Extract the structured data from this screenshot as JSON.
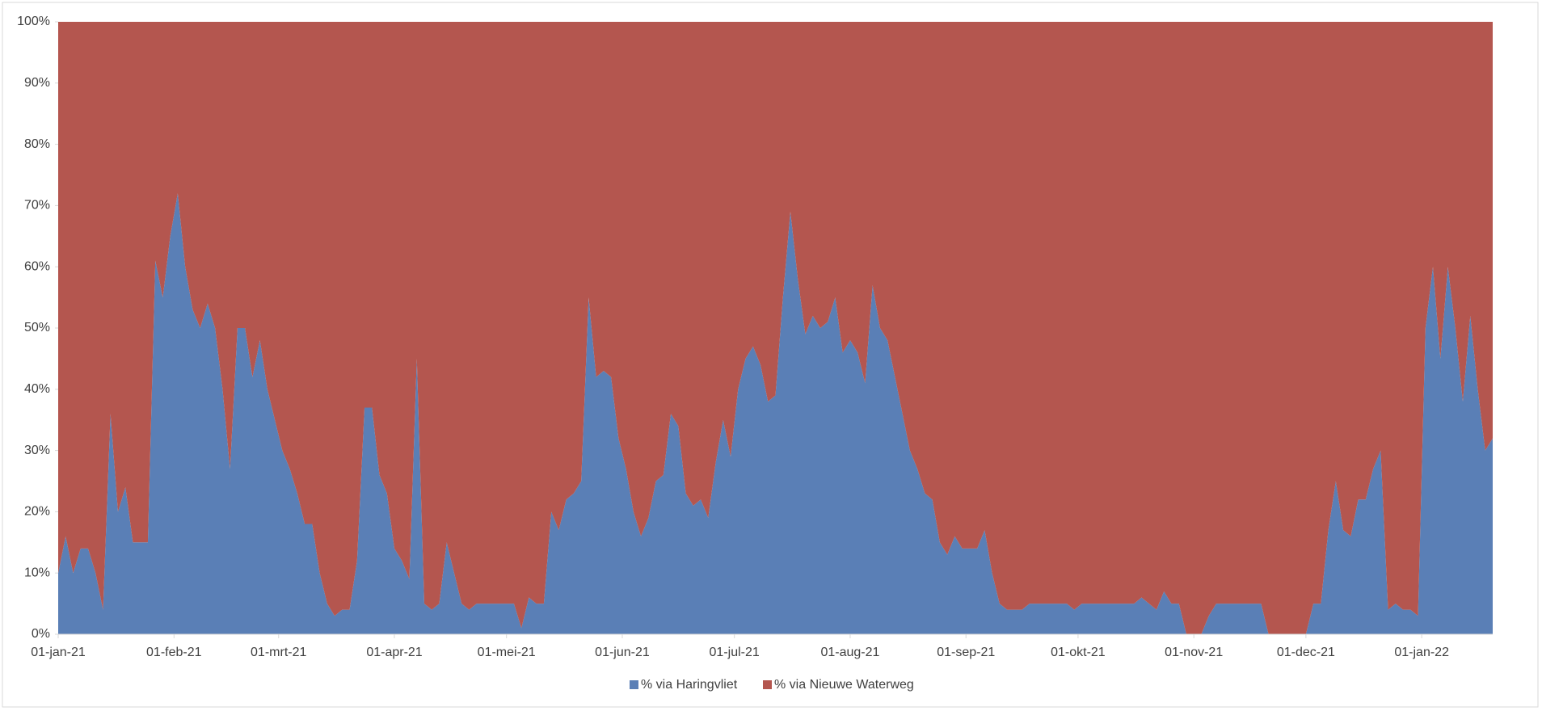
{
  "chart_data": {
    "type": "stacked-area-percent",
    "x": [
      "2021-01-01",
      "2021-01-03",
      "2021-01-05",
      "2021-01-07",
      "2021-01-09",
      "2021-01-11",
      "2021-01-13",
      "2021-01-15",
      "2021-01-17",
      "2021-01-19",
      "2021-01-21",
      "2021-01-23",
      "2021-01-25",
      "2021-01-27",
      "2021-01-29",
      "2021-01-31",
      "2021-02-02",
      "2021-02-04",
      "2021-02-06",
      "2021-02-08",
      "2021-02-10",
      "2021-02-12",
      "2021-02-14",
      "2021-02-16",
      "2021-02-18",
      "2021-02-20",
      "2021-02-22",
      "2021-02-24",
      "2021-02-26",
      "2021-02-28",
      "2021-03-02",
      "2021-03-04",
      "2021-03-06",
      "2021-03-08",
      "2021-03-10",
      "2021-03-12",
      "2021-03-14",
      "2021-03-16",
      "2021-03-18",
      "2021-03-20",
      "2021-03-22",
      "2021-03-24",
      "2021-03-26",
      "2021-03-28",
      "2021-03-30",
      "2021-04-01",
      "2021-04-03",
      "2021-04-05",
      "2021-04-07",
      "2021-04-09",
      "2021-04-11",
      "2021-04-13",
      "2021-04-15",
      "2021-04-17",
      "2021-04-19",
      "2021-04-21",
      "2021-04-23",
      "2021-04-25",
      "2021-04-27",
      "2021-04-29",
      "2021-05-01",
      "2021-05-03",
      "2021-05-05",
      "2021-05-07",
      "2021-05-09",
      "2021-05-11",
      "2021-05-13",
      "2021-05-15",
      "2021-05-17",
      "2021-05-19",
      "2021-05-21",
      "2021-05-23",
      "2021-05-25",
      "2021-05-27",
      "2021-05-29",
      "2021-05-31",
      "2021-06-02",
      "2021-06-04",
      "2021-06-06",
      "2021-06-08",
      "2021-06-10",
      "2021-06-12",
      "2021-06-14",
      "2021-06-16",
      "2021-06-18",
      "2021-06-20",
      "2021-06-22",
      "2021-06-24",
      "2021-06-26",
      "2021-06-28",
      "2021-06-30",
      "2021-07-02",
      "2021-07-04",
      "2021-07-06",
      "2021-07-08",
      "2021-07-10",
      "2021-07-12",
      "2021-07-14",
      "2021-07-16",
      "2021-07-18",
      "2021-07-20",
      "2021-07-22",
      "2021-07-24",
      "2021-07-26",
      "2021-07-28",
      "2021-07-30",
      "2021-08-01",
      "2021-08-03",
      "2021-08-05",
      "2021-08-07",
      "2021-08-09",
      "2021-08-11",
      "2021-08-13",
      "2021-08-15",
      "2021-08-17",
      "2021-08-19",
      "2021-08-21",
      "2021-08-23",
      "2021-08-25",
      "2021-08-27",
      "2021-08-29",
      "2021-08-31",
      "2021-09-02",
      "2021-09-04",
      "2021-09-06",
      "2021-09-08",
      "2021-09-10",
      "2021-09-12",
      "2021-09-14",
      "2021-09-16",
      "2021-09-18",
      "2021-09-20",
      "2021-09-22",
      "2021-09-24",
      "2021-09-26",
      "2021-09-28",
      "2021-09-30",
      "2021-10-02",
      "2021-10-04",
      "2021-10-06",
      "2021-10-08",
      "2021-10-10",
      "2021-10-12",
      "2021-10-14",
      "2021-10-16",
      "2021-10-18",
      "2021-10-20",
      "2021-10-22",
      "2021-10-24",
      "2021-10-26",
      "2021-10-28",
      "2021-10-30",
      "2021-11-01",
      "2021-11-03",
      "2021-11-05",
      "2021-11-07",
      "2021-11-09",
      "2021-11-11",
      "2021-11-13",
      "2021-11-15",
      "2021-11-17",
      "2021-11-19",
      "2021-11-21",
      "2021-11-23",
      "2021-11-25",
      "2021-11-27",
      "2021-11-29",
      "2021-12-01",
      "2021-12-03",
      "2021-12-05",
      "2021-12-07",
      "2021-12-09",
      "2021-12-11",
      "2021-12-13",
      "2021-12-15",
      "2021-12-17",
      "2021-12-19",
      "2021-12-21",
      "2021-12-23",
      "2021-12-25",
      "2021-12-27",
      "2021-12-29",
      "2021-12-31",
      "2022-01-02",
      "2022-01-04",
      "2022-01-06",
      "2022-01-08",
      "2022-01-10",
      "2022-01-12",
      "2022-01-14",
      "2022-01-16",
      "2022-01-18",
      "2022-01-20"
    ],
    "series": [
      {
        "name": "% via Haringvliet",
        "color": "#5a7fb6",
        "values": [
          10,
          16,
          10,
          14,
          14,
          10,
          4,
          36,
          20,
          24,
          15,
          15,
          15,
          61,
          55,
          65,
          72,
          60,
          53,
          50,
          54,
          50,
          40,
          27,
          50,
          50,
          42,
          48,
          40,
          35,
          30,
          27,
          23,
          18,
          18,
          10,
          5,
          3,
          4,
          4,
          12,
          37,
          37,
          26,
          23,
          14,
          12,
          9,
          45,
          5,
          4,
          5,
          15,
          10,
          5,
          4,
          5,
          5,
          5,
          5,
          5,
          5,
          1,
          6,
          5,
          5,
          20,
          17,
          22,
          23,
          25,
          55,
          42,
          43,
          42,
          32,
          27,
          20,
          16,
          19,
          25,
          26,
          36,
          34,
          23,
          21,
          22,
          19,
          28,
          35,
          29,
          40,
          45,
          47,
          44,
          38,
          39,
          55,
          69,
          58,
          49,
          52,
          50,
          51,
          55,
          46,
          48,
          46,
          41,
          57,
          50,
          48,
          42,
          36,
          30,
          27,
          23,
          22,
          15,
          13,
          16,
          14,
          14,
          14,
          17,
          10,
          5,
          4,
          4,
          4,
          5,
          5,
          5,
          5,
          5,
          5,
          4,
          5,
          5,
          5,
          5,
          5,
          5,
          5,
          5,
          6,
          5,
          4,
          7,
          5,
          5,
          0,
          0,
          0,
          3,
          5,
          5,
          5,
          5,
          5,
          5,
          5,
          0,
          0,
          0,
          0,
          0,
          0,
          5,
          5,
          17,
          25,
          17,
          16,
          22,
          22,
          27,
          30,
          4,
          5,
          4,
          4,
          3,
          50,
          60,
          45,
          60,
          50,
          38,
          52,
          40,
          30,
          32
        ]
      },
      {
        "name": "% via Nieuwe Waterweg",
        "color": "#b4564f",
        "values": [
          90,
          84,
          90,
          86,
          86,
          90,
          96,
          64,
          80,
          76,
          85,
          85,
          85,
          39,
          45,
          35,
          28,
          40,
          47,
          50,
          46,
          50,
          60,
          73,
          50,
          50,
          58,
          52,
          60,
          65,
          70,
          73,
          77,
          82,
          82,
          90,
          95,
          97,
          96,
          96,
          88,
          63,
          63,
          74,
          77,
          86,
          88,
          91,
          55,
          95,
          96,
          95,
          85,
          90,
          95,
          96,
          95,
          95,
          95,
          95,
          95,
          95,
          99,
          94,
          95,
          95,
          80,
          83,
          78,
          77,
          75,
          45,
          58,
          57,
          58,
          68,
          73,
          80,
          84,
          81,
          75,
          74,
          64,
          66,
          77,
          79,
          78,
          81,
          72,
          65,
          71,
          60,
          55,
          53,
          56,
          62,
          61,
          45,
          31,
          42,
          51,
          48,
          50,
          49,
          45,
          54,
          52,
          54,
          59,
          43,
          50,
          52,
          58,
          64,
          70,
          73,
          77,
          78,
          85,
          87,
          84,
          86,
          86,
          86,
          83,
          90,
          95,
          96,
          96,
          96,
          95,
          95,
          95,
          95,
          95,
          95,
          96,
          95,
          95,
          95,
          95,
          95,
          95,
          95,
          95,
          94,
          95,
          96,
          93,
          95,
          95,
          100,
          100,
          100,
          97,
          95,
          95,
          95,
          95,
          95,
          95,
          95,
          100,
          100,
          100,
          100,
          100,
          100,
          95,
          95,
          83,
          75,
          83,
          84,
          78,
          78,
          73,
          70,
          96,
          95,
          96,
          96,
          97,
          50,
          40,
          55,
          40,
          50,
          62,
          48,
          60,
          70,
          68
        ]
      }
    ],
    "xlim": [
      "2021-01-01",
      "2022-01-20"
    ],
    "xticks": [
      {
        "value": "2021-01-01",
        "label": "01-jan-21"
      },
      {
        "value": "2021-02-01",
        "label": "01-feb-21"
      },
      {
        "value": "2021-03-01",
        "label": "01-mrt-21"
      },
      {
        "value": "2021-04-01",
        "label": "01-apr-21"
      },
      {
        "value": "2021-05-01",
        "label": "01-mei-21"
      },
      {
        "value": "2021-06-01",
        "label": "01-jun-21"
      },
      {
        "value": "2021-07-01",
        "label": "01-jul-21"
      },
      {
        "value": "2021-08-01",
        "label": "01-aug-21"
      },
      {
        "value": "2021-09-01",
        "label": "01-sep-21"
      },
      {
        "value": "2021-10-01",
        "label": "01-okt-21"
      },
      {
        "value": "2021-11-01",
        "label": "01-nov-21"
      },
      {
        "value": "2021-12-01",
        "label": "01-dec-21"
      },
      {
        "value": "2022-01-01",
        "label": "01-jan-22"
      }
    ],
    "ylim": [
      0,
      100
    ],
    "yticks": [
      {
        "value": 0,
        "label": "0%"
      },
      {
        "value": 10,
        "label": "10%"
      },
      {
        "value": 20,
        "label": "20%"
      },
      {
        "value": 30,
        "label": "30%"
      },
      {
        "value": 40,
        "label": "40%"
      },
      {
        "value": 50,
        "label": "50%"
      },
      {
        "value": 60,
        "label": "60%"
      },
      {
        "value": 70,
        "label": "70%"
      },
      {
        "value": 80,
        "label": "80%"
      },
      {
        "value": 90,
        "label": "90%"
      },
      {
        "value": 100,
        "label": "100%"
      }
    ],
    "legend": "bottom"
  }
}
